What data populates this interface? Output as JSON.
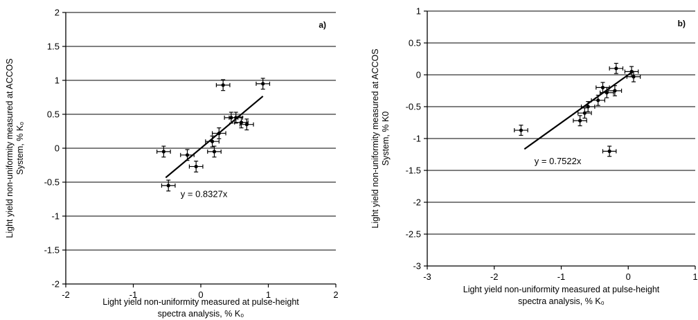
{
  "chart_data": [
    {
      "type": "scatter",
      "panel_label": "a)",
      "xlabel_lines": [
        "Light yield non-uniformity measured at pulse-height",
        "spectra analysis, % Κ₀"
      ],
      "ylabel_lines": [
        "Light yield non-uniformity measured at ACCOS",
        "System, % Κ₀"
      ],
      "xlim": [
        -2,
        2
      ],
      "ylim": [
        -2,
        2
      ],
      "xticks": [
        "-2",
        "-1",
        "0",
        "1",
        "2"
      ],
      "yticks": [
        "2",
        "1.5",
        "1",
        "0.5",
        "0",
        "-0.5",
        "-1",
        "-1.5",
        "-2"
      ],
      "xtick_values": [
        -2,
        -1,
        0,
        1,
        2
      ],
      "ytick_values": [
        2,
        1.5,
        1,
        0.5,
        0,
        -0.5,
        -1,
        -1.5,
        -2
      ],
      "grid": "horizontal",
      "series": [
        {
          "points": [
            {
              "x": -0.55,
              "y": -0.05,
              "xerr": 0.1,
              "yerr": 0.08
            },
            {
              "x": -0.48,
              "y": -0.55,
              "xerr": 0.1,
              "yerr": 0.08
            },
            {
              "x": -0.2,
              "y": -0.1,
              "xerr": 0.1,
              "yerr": 0.08
            },
            {
              "x": -0.07,
              "y": -0.27,
              "xerr": 0.1,
              "yerr": 0.08
            },
            {
              "x": 0.17,
              "y": 0.1,
              "xerr": 0.1,
              "yerr": 0.08
            },
            {
              "x": 0.2,
              "y": -0.05,
              "xerr": 0.1,
              "yerr": 0.08
            },
            {
              "x": 0.27,
              "y": 0.22,
              "xerr": 0.1,
              "yerr": 0.08
            },
            {
              "x": 0.33,
              "y": 0.93,
              "xerr": 0.1,
              "yerr": 0.08
            },
            {
              "x": 0.45,
              "y": 0.45,
              "xerr": 0.1,
              "yerr": 0.08
            },
            {
              "x": 0.52,
              "y": 0.45,
              "xerr": 0.1,
              "yerr": 0.08
            },
            {
              "x": 0.6,
              "y": 0.38,
              "xerr": 0.1,
              "yerr": 0.08
            },
            {
              "x": 0.68,
              "y": 0.35,
              "xerr": 0.1,
              "yerr": 0.08
            },
            {
              "x": 0.92,
              "y": 0.95,
              "xerr": 0.1,
              "yerr": 0.08
            }
          ]
        }
      ],
      "trendline": {
        "slope": 0.8327,
        "x_range": [
          -0.52,
          0.92
        ],
        "label": "y = 0.8327x",
        "label_at": [
          -0.3,
          -0.72
        ]
      }
    },
    {
      "type": "scatter",
      "panel_label": "b)",
      "xlabel_lines": [
        "Light yield non-uniformity measured at pulse-height",
        "spectra analysis, % Κ₀"
      ],
      "ylabel_lines": [
        "Light yield non-uniformity measured at ACCOS",
        "System, % K0"
      ],
      "xlim": [
        -3,
        1
      ],
      "ylim": [
        -3,
        1
      ],
      "xticks": [
        "-3",
        "-2",
        "-1",
        "0",
        "1"
      ],
      "yticks": [
        "1",
        "0.5",
        "0",
        "-0.5",
        "-1",
        "-1.5",
        "-2",
        "-2.5",
        "-3"
      ],
      "xtick_values": [
        -3,
        -2,
        -1,
        0,
        1
      ],
      "ytick_values": [
        1,
        0.5,
        0,
        -0.5,
        -1,
        -1.5,
        -2,
        -2.5,
        -3
      ],
      "grid": "horizontal",
      "series": [
        {
          "points": [
            {
              "x": -1.6,
              "y": -0.87,
              "xerr": 0.1,
              "yerr": 0.08
            },
            {
              "x": -0.72,
              "y": -0.72,
              "xerr": 0.1,
              "yerr": 0.08
            },
            {
              "x": -0.65,
              "y": -0.6,
              "xerr": 0.1,
              "yerr": 0.08
            },
            {
              "x": -0.6,
              "y": -0.5,
              "xerr": 0.1,
              "yerr": 0.08
            },
            {
              "x": -0.45,
              "y": -0.4,
              "xerr": 0.1,
              "yerr": 0.08
            },
            {
              "x": -0.38,
              "y": -0.2,
              "xerr": 0.1,
              "yerr": 0.08
            },
            {
              "x": -0.32,
              "y": -0.28,
              "xerr": 0.1,
              "yerr": 0.08
            },
            {
              "x": -0.28,
              "y": -1.2,
              "xerr": 0.1,
              "yerr": 0.08
            },
            {
              "x": -0.2,
              "y": -0.25,
              "xerr": 0.1,
              "yerr": 0.08
            },
            {
              "x": -0.18,
              "y": 0.1,
              "xerr": 0.1,
              "yerr": 0.08
            },
            {
              "x": 0.05,
              "y": 0.05,
              "xerr": 0.1,
              "yerr": 0.08
            },
            {
              "x": 0.08,
              "y": -0.03,
              "xerr": 0.1,
              "yerr": 0.08
            }
          ]
        }
      ],
      "trendline": {
        "slope": 0.7522,
        "x_range": [
          -1.55,
          0.08
        ],
        "label": "y = 0.7522x",
        "label_at": [
          -1.4,
          -1.4
        ]
      }
    }
  ]
}
